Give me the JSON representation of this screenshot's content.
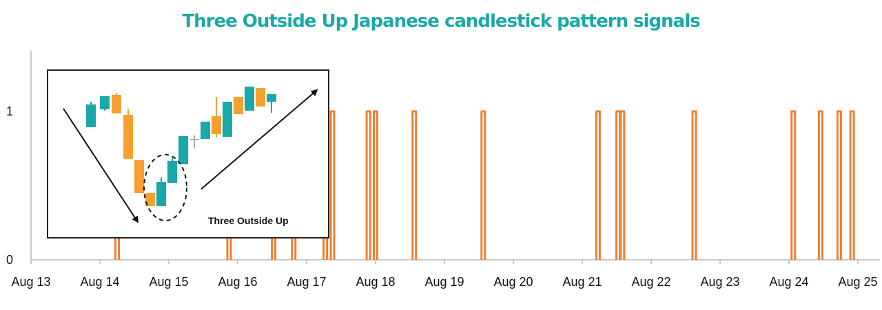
{
  "title": "Three Outside Up Japanese candlestick pattern signals",
  "inset": {
    "label": "Three Outside Up",
    "bull_color": "#1aa8a8",
    "bear_color": "#f7a030",
    "doji_color": "#aaaaaa"
  },
  "chart_data": {
    "type": "line",
    "title": "Three Outside Up Japanese candlestick pattern signals",
    "xlabel": "",
    "ylabel": "",
    "x_ticks": [
      "Aug 13",
      "Aug 14",
      "Aug 15",
      "Aug 16",
      "Aug 17",
      "Aug 18",
      "Aug 19",
      "Aug 20",
      "Aug 21",
      "Aug 22",
      "Aug 23",
      "Aug 24",
      "Aug 25"
    ],
    "y_ticks": [
      "0",
      "1"
    ],
    "ylim": [
      0,
      1.3
    ],
    "grid": false,
    "line_color": "#f08030",
    "signal_value": 1,
    "signals": [
      "Aug 14 06:00",
      "Aug 15 21:00",
      "Aug 16 12:30",
      "Aug 16 19:30",
      "Aug 17 06:30",
      "Aug 17 09:00",
      "Aug 17 21:30",
      "Aug 18 00:00",
      "Aug 18 13:30",
      "Aug 19 13:30",
      "Aug 21 05:30",
      "Aug 21 12:30",
      "Aug 21 14:00",
      "Aug 22 15:00",
      "Aug 24 01:30",
      "Aug 24 11:00",
      "Aug 24 17:30",
      "Aug 24 22:00"
    ]
  }
}
